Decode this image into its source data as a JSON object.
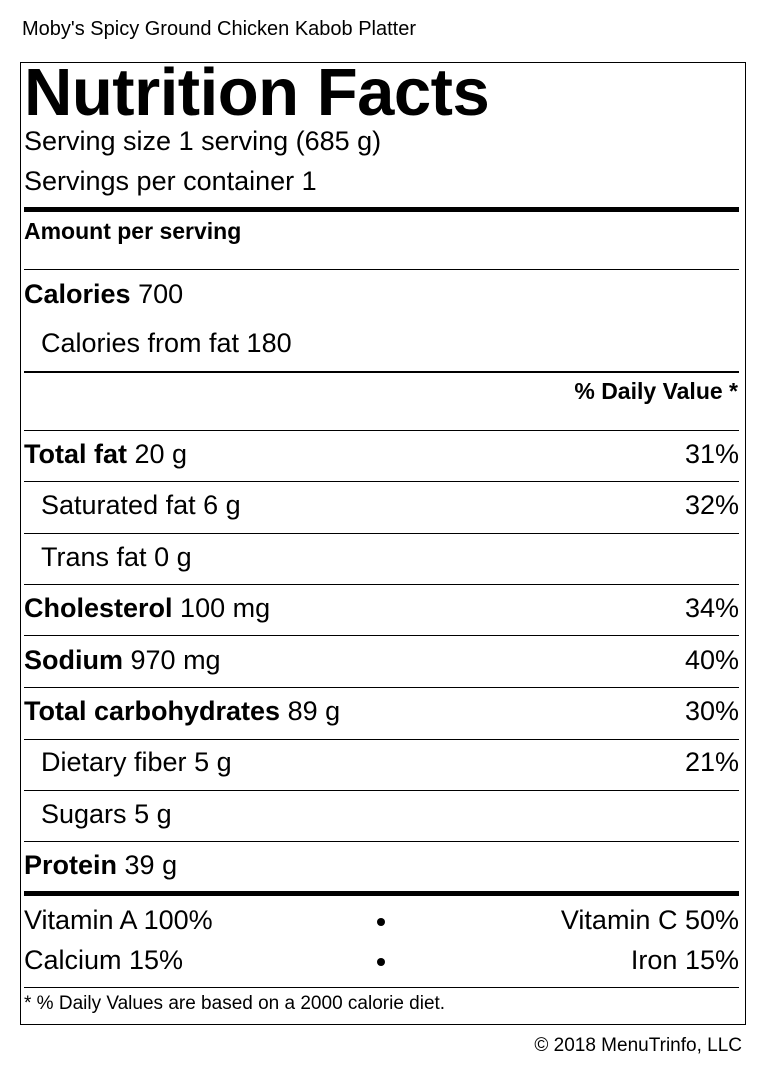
{
  "item_name": "Moby's Spicy Ground Chicken Kabob Platter",
  "label": {
    "title": "Nutrition Facts",
    "serving_size": "Serving size 1 serving (685 g)",
    "servings_per_container": "Servings per container 1",
    "amount_per_serving": "Amount per serving",
    "calories_label": "Calories",
    "calories_value": "700",
    "calories_from_fat": "Calories from fat 180",
    "daily_value_header": "% Daily Value *",
    "nutrients": [
      {
        "name": "Total fat",
        "amount": "20 g",
        "dv": "31%"
      },
      {
        "name": "Saturated fat",
        "amount": "6 g",
        "dv": "32%"
      },
      {
        "name": "Trans fat",
        "amount": "0 g",
        "dv": ""
      },
      {
        "name": "Cholesterol",
        "amount": "100 mg",
        "dv": "34%"
      },
      {
        "name": "Sodium",
        "amount": "970 mg",
        "dv": "40%"
      },
      {
        "name": "Total carbohydrates",
        "amount": "89 g",
        "dv": "30%"
      },
      {
        "name": "Dietary fiber",
        "amount": "5 g",
        "dv": "21%"
      },
      {
        "name": "Sugars",
        "amount": "5 g",
        "dv": ""
      },
      {
        "name": "Protein",
        "amount": "39 g",
        "dv": ""
      }
    ],
    "vitamins": {
      "vitamin_a": "Vitamin A 100%",
      "vitamin_c": "Vitamin C 50%",
      "calcium": "Calcium 15%",
      "iron": "Iron 15%"
    },
    "footnote": "* % Daily Values are based on a 2000 calorie diet."
  },
  "copyright": "© 2018 MenuTrinfo, LLC"
}
